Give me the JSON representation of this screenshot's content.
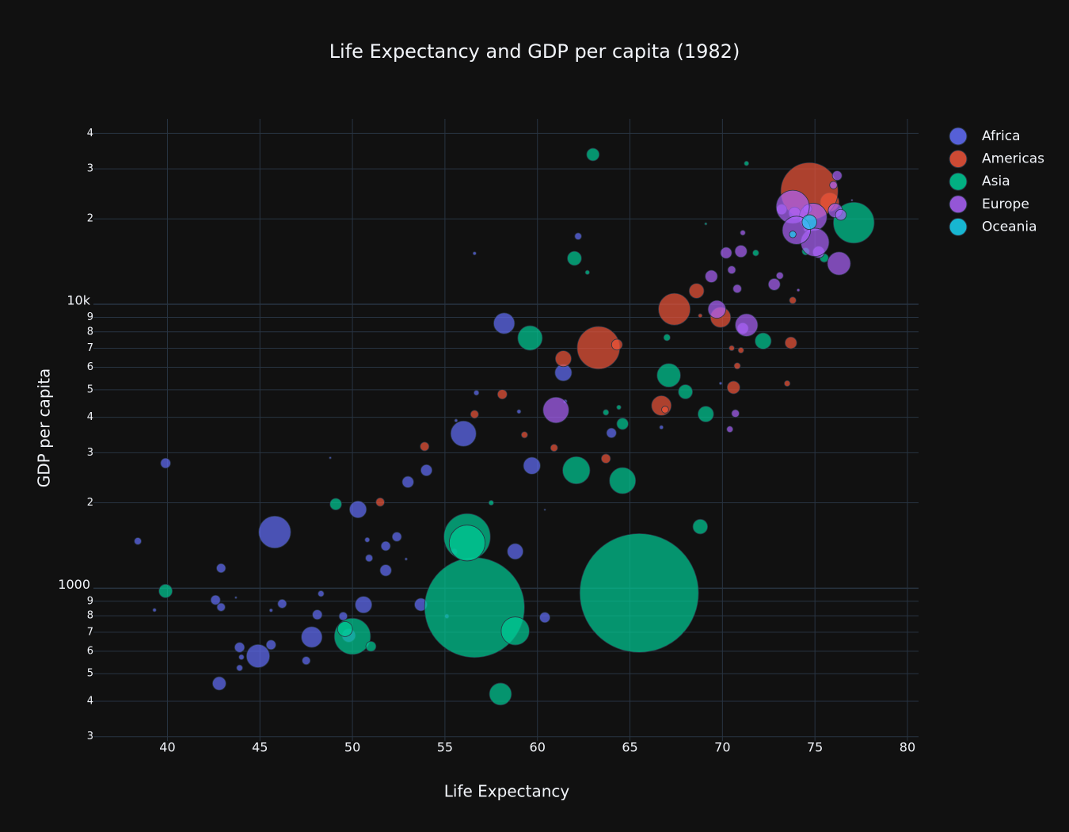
{
  "chart_data": {
    "type": "scatter",
    "title": "Life Expectancy and GDP per capita (1982)",
    "x_label": "Life Expectancy",
    "y_label": "GDP per capita",
    "log_y": true,
    "grid": true,
    "legend_position": "top-right",
    "xlim": [
      36,
      80.6
    ],
    "xticks": [
      40,
      45,
      50,
      55,
      60,
      65,
      70,
      75,
      80
    ],
    "ylim": [
      290,
      45000
    ],
    "yticks": [
      {
        "value": 300,
        "label": "3"
      },
      {
        "value": 400,
        "label": "4"
      },
      {
        "value": 500,
        "label": "5"
      },
      {
        "value": 600,
        "label": "6"
      },
      {
        "value": 700,
        "label": "7"
      },
      {
        "value": 800,
        "label": "8"
      },
      {
        "value": 900,
        "label": "9"
      },
      1000,
      {
        "value": 2000,
        "label": "2"
      },
      {
        "value": 3000,
        "label": "3"
      },
      {
        "value": 4000,
        "label": "4"
      },
      {
        "value": 5000,
        "label": "5"
      },
      {
        "value": 6000,
        "label": "6"
      },
      {
        "value": 7000,
        "label": "7"
      },
      {
        "value": 8000,
        "label": "8"
      },
      {
        "value": 9000,
        "label": "9"
      },
      {
        "value": 10000,
        "label": "10k"
      },
      {
        "value": 20000,
        "label": "2"
      },
      {
        "value": 30000,
        "label": "3"
      },
      {
        "value": 40000,
        "label": "4"
      }
    ],
    "series": [
      {
        "name": "Africa",
        "color": "#636efa",
        "x": [
          61.4,
          39.9,
          50.9,
          61.5,
          48.1,
          47.5,
          53.0,
          48.3,
          49.5,
          52.9,
          47.8,
          56.7,
          54.0,
          48.8,
          56.0,
          43.7,
          43.9,
          44.9,
          56.6,
          45.6,
          53.7,
          42.9,
          39.3,
          58.8,
          55.1,
          44.0,
          62.2,
          51.8,
          45.6,
          43.9,
          50.8,
          66.7,
          59.7,
          42.8,
          59.0,
          42.6,
          45.8,
          69.9,
          46.2,
          60.4,
          52.4,
          38.4,
          42.9,
          58.2,
          50.3,
          55.6,
          50.6,
          55.5,
          64.0,
          49.8,
          51.8,
          60.4
        ],
        "values": [
          5745,
          2757,
          1277,
          4551,
          807,
          556,
          2367,
          957,
          797,
          1267,
          673,
          4880,
          2603,
          2880,
          3503,
          927,
          524,
          577,
          15113,
          836,
          876,
          858,
          838,
          1348,
          797,
          572,
          17364,
          1156,
          632,
          619,
          1481,
          3688,
          2702,
          462,
          4191,
          909,
          1577,
          5268,
          882,
          1891,
          1518,
          1465,
          1177,
          8568,
          1895,
          3896,
          875,
          1345,
          3523,
          682,
          1408,
          789
        ],
        "sizes": [
          20.0,
          7.0,
          3.6,
          0.97,
          6.6,
          4.6,
          9.3,
          2.5,
          4.9,
          0.42,
          30.6,
          1.8,
          9.0,
          0.3,
          45.7,
          0.29,
          2.6,
          38.1,
          0.75,
          0.72,
          11.4,
          4.7,
          0.83,
          17.6,
          1.4,
          1.9,
          3.3,
          9.2,
          6.5,
          6.9,
          1.6,
          1.0,
          20.2,
          12.7,
          1.1,
          6.4,
          73.0,
          0.52,
          5.5,
          0.1,
          6.1,
          3.5,
          5.8,
          31.1,
          20.4,
          0.65,
          19.8,
          2.9,
          6.7,
          12.9,
          6.1,
          7.6
        ]
      },
      {
        "name": "Americas",
        "color": "#EF553B",
        "x": [
          69.9,
          53.9,
          63.3,
          75.8,
          70.6,
          66.7,
          73.5,
          73.7,
          63.7,
          64.3,
          56.6,
          58.1,
          51.5,
          60.9,
          71.0,
          67.4,
          59.3,
          70.5,
          66.9,
          61.4,
          73.8,
          68.8,
          74.7,
          70.8,
          68.6
        ],
        "values": [
          8998,
          3157,
          7031,
          22899,
          5096,
          4398,
          5263,
          7316,
          2862,
          7213,
          4099,
          4820,
          2011,
          3122,
          6890,
          9611,
          3470,
          7010,
          4258,
          6434,
          10331,
          9119,
          25010,
          6068,
          11152
        ],
        "sizes": [
          29.3,
          5.6,
          128.9,
          25.2,
          11.5,
          27.8,
          2.4,
          9.8,
          6.0,
          8.4,
          4.6,
          6.4,
          5.2,
          3.7,
          2.3,
          71.6,
          2.9,
          2.0,
          3.4,
          18.1,
          3.3,
          1.1,
          232,
          2.9,
          15.6
        ]
      },
      {
        "name": "Asia",
        "color": "#00cc96",
        "x": [
          39.9,
          69.1,
          50.0,
          51.0,
          65.5,
          75.5,
          56.6,
          56.2,
          59.6,
          62.0,
          74.5,
          77.1,
          63.7,
          69.1,
          67.1,
          71.3,
          67.0,
          68.0,
          57.5,
          58.0,
          49.6,
          62.7,
          56.2,
          62.1,
          63.0,
          71.8,
          68.8,
          64.6,
          72.2,
          64.6,
          64.4,
          58.8,
          49.1
        ],
        "values": [
          978,
          19211,
          677,
          624,
          962,
          14560,
          855,
          1517,
          7608,
          14517,
          15367,
          19384,
          4162,
          4106,
          5623,
          31354,
          7640,
          4920,
          2000,
          424,
          718,
          12955,
          1443,
          2603,
          33693,
          15169,
          1648,
          3795,
          7427,
          2393,
          4337,
          707,
          1978
        ],
        "sizes": [
          12.9,
          0.38,
          93,
          7.3,
          1000,
          5.3,
          708,
          153,
          43,
          14.2,
          3.9,
          118.5,
          2.35,
          17.6,
          39.3,
          1.5,
          3.1,
          14.4,
          1.76,
          34.7,
          15.8,
          1.3,
          91,
          53,
          11.3,
          2.65,
          15.4,
          9.4,
          18.5,
          48.8,
          1.4,
          56,
          9.7
        ]
      },
      {
        "name": "Europe",
        "color": "#ab63fa",
        "x": [
          70.4,
          73.2,
          73.9,
          70.7,
          71.1,
          70.5,
          71.0,
          74.6,
          74.6,
          74.9,
          73.8,
          75.2,
          69.4,
          77.0,
          73.1,
          75.0,
          74.1,
          76.1,
          76.0,
          71.3,
          72.8,
          69.7,
          70.2,
          70.8,
          71.1,
          76.3,
          76.4,
          76.2,
          61.0,
          74.0
        ],
        "values": [
          3631,
          21597,
          20980,
          4127,
          8224,
          13222,
          15377,
          21688,
          18533,
          20294,
          22032,
          15268,
          12546,
          23270,
          12618,
          16537,
          11222,
          21399,
          26298,
          8451,
          11754,
          9605,
          15181,
          11348,
          17867,
          13926,
          20667,
          28397,
          4241,
          18232
        ],
        "sizes": [
          2.78,
          7.57,
          9.86,
          4.17,
          8.9,
          4.4,
          10.3,
          5.1,
          4.8,
          54.4,
          78.3,
          9.8,
          10.7,
          0.23,
          3.5,
          56.5,
          0.56,
          14.3,
          4.1,
          36.2,
          9.86,
          22.4,
          9.0,
          5.0,
          1.86,
          38.0,
          8.3,
          6.5,
          47.3,
          56.3
        ]
      },
      {
        "name": "Oceania",
        "color": "#19d3f3",
        "x": [
          74.7,
          73.8
        ],
        "values": [
          19477,
          17632
        ],
        "sizes": [
          15.2,
          3.2
        ]
      }
    ]
  }
}
